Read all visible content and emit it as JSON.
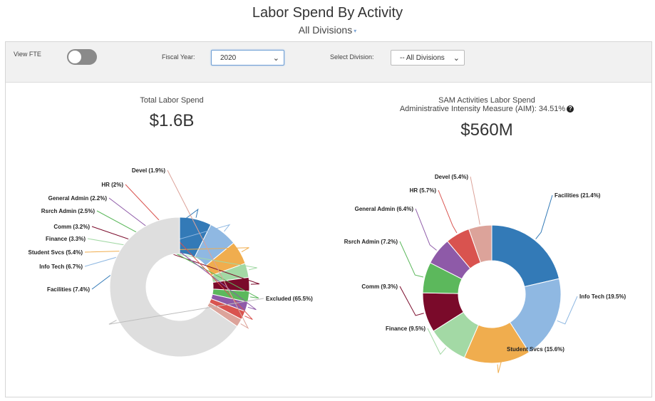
{
  "header": {
    "title": "Labor Spend By Activity",
    "division": "All Divisions",
    "caret": "▾"
  },
  "toolbar": {
    "view_fte_label": "View FTE",
    "view_fte_on": false,
    "fiscal_year_label": "Fiscal Year:",
    "fiscal_year_value": "2020",
    "select_division_label": "Select Division:",
    "select_division_value": "-- All Divisions"
  },
  "left": {
    "title": "Total Labor Spend",
    "value": "$1.6B"
  },
  "right": {
    "title": "SAM Activities Labor Spend",
    "subtitle": "Administrative Intensity Measure (AIM): 34.51%",
    "help": "?",
    "value": "$560M"
  },
  "chart_data": [
    {
      "type": "pie",
      "title": "Total Labor Spend",
      "donut": true,
      "slices": [
        {
          "label": "Facilities (7.4%)",
          "value": 7.4,
          "color": "#337ab7"
        },
        {
          "label": "Info Tech (6.7%)",
          "value": 6.7,
          "color": "#8fb8e2"
        },
        {
          "label": "Student Svcs (5.4%)",
          "value": 5.4,
          "color": "#f0ad4e"
        },
        {
          "label": "Finance (3.3%)",
          "value": 3.3,
          "color": "#a3d9a5"
        },
        {
          "label": "Comm (3.2%)",
          "value": 3.2,
          "color": "#7a0a2a"
        },
        {
          "label": "Rsrch Admin (2.5%)",
          "value": 2.5,
          "color": "#5cb85c"
        },
        {
          "label": "General Admin (2.2%)",
          "value": 2.2,
          "color": "#8e5aa8"
        },
        {
          "label": "HR (2%)",
          "value": 2.0,
          "color": "#d9534f"
        },
        {
          "label": "Devel (1.9%)",
          "value": 1.9,
          "color": "#dca39a"
        },
        {
          "label": "Excluded (65.5%)",
          "value": 65.5,
          "color": "#dedede"
        }
      ]
    },
    {
      "type": "pie",
      "title": "SAM Activities Labor Spend",
      "donut": true,
      "slices": [
        {
          "label": "Facilities (21.4%)",
          "value": 21.4,
          "color": "#337ab7"
        },
        {
          "label": "Info Tech (19.5%)",
          "value": 19.5,
          "color": "#8fb8e2"
        },
        {
          "label": "Student Svcs (15.6%)",
          "value": 15.6,
          "color": "#f0ad4e"
        },
        {
          "label": "Finance (9.5%)",
          "value": 9.5,
          "color": "#a3d9a5"
        },
        {
          "label": "Comm (9.3%)",
          "value": 9.3,
          "color": "#7a0a2a"
        },
        {
          "label": "Rsrch Admin (7.2%)",
          "value": 7.2,
          "color": "#5cb85c"
        },
        {
          "label": "General Admin (6.4%)",
          "value": 6.4,
          "color": "#8e5aa8"
        },
        {
          "label": "HR (5.7%)",
          "value": 5.7,
          "color": "#d9534f"
        },
        {
          "label": "Devel (5.4%)",
          "value": 5.4,
          "color": "#dca39a"
        }
      ]
    }
  ]
}
